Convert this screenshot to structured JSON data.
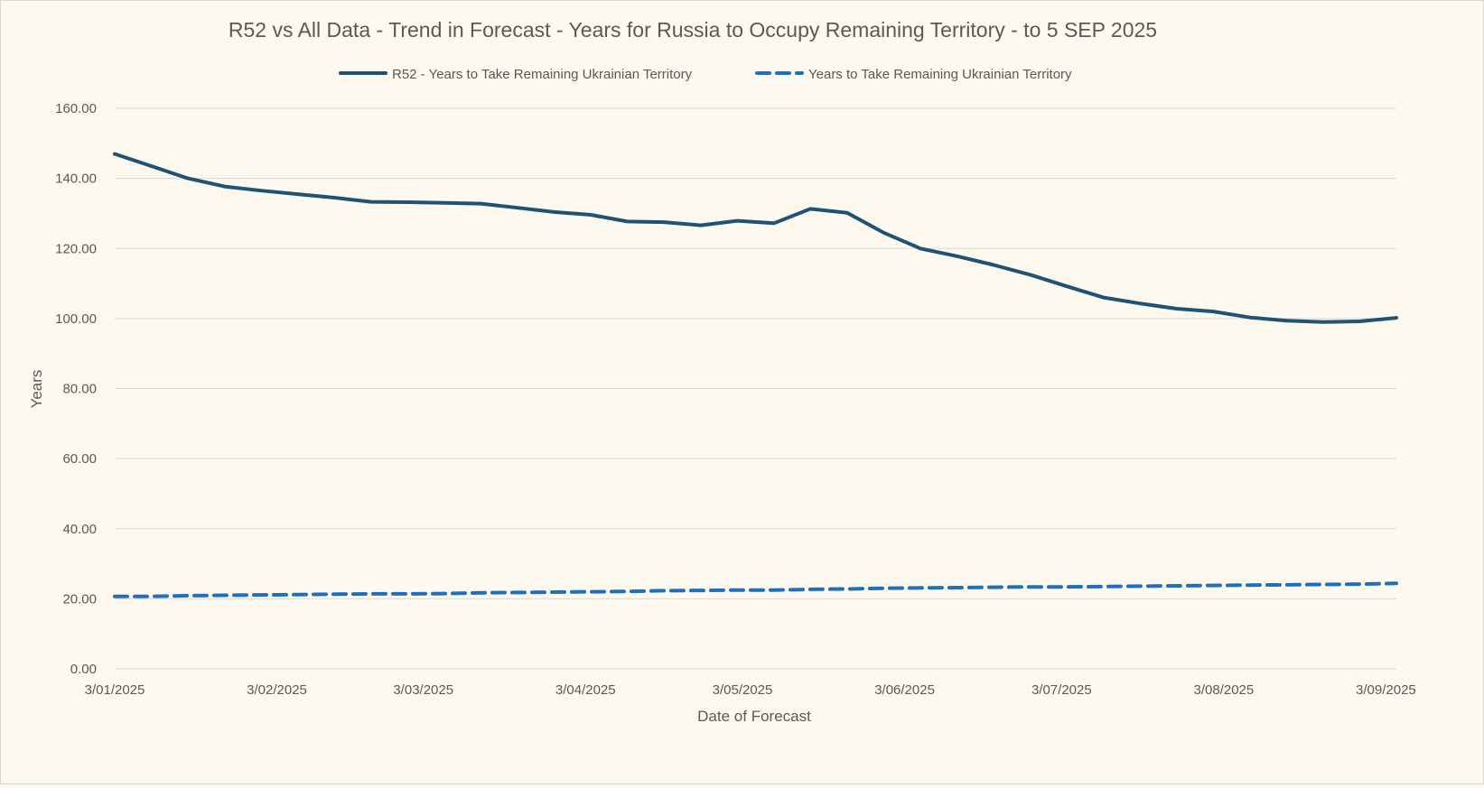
{
  "colors": {
    "series_r52": "#1f5273",
    "series_all": "#1f6fbf",
    "grid": "#d9d9d9",
    "text": "#595959",
    "background": "#fdf9ee"
  },
  "chart_data": {
    "type": "line",
    "title": "R52 vs All Data  - Trend in Forecast - Years for Russia to Occupy Remaining Territory - to 5 SEP 2025",
    "xlabel": "Date of Forecast",
    "ylabel": "Years",
    "ylim": [
      0,
      160
    ],
    "yticks": [
      "0.00",
      "20.00",
      "40.00",
      "60.00",
      "80.00",
      "100.00",
      "120.00",
      "140.00",
      "160.00"
    ],
    "yticks_values": [
      0,
      20,
      40,
      60,
      80,
      100,
      120,
      140,
      160
    ],
    "xlim_days": [
      0,
      245
    ],
    "xticks": [
      "3/01/2025",
      "3/02/2025",
      "3/03/2025",
      "3/04/2025",
      "3/05/2025",
      "3/06/2025",
      "3/07/2025",
      "3/08/2025",
      "3/09/2025"
    ],
    "xticks_days": [
      0,
      31,
      59,
      90,
      120,
      151,
      181,
      212,
      243
    ],
    "legend": "top",
    "grid": true,
    "series": [
      {
        "name": "R52 - Years to Take Remaining Ukrainian Territory",
        "style": "solid",
        "x_days": [
          0,
          7,
          14,
          21,
          28,
          35,
          42,
          49,
          56,
          63,
          70,
          77,
          84,
          91,
          98,
          105,
          112,
          119,
          126,
          133,
          140,
          147,
          154,
          161,
          168,
          175,
          182,
          189,
          196,
          203,
          210,
          217,
          224,
          231,
          238,
          245
        ],
        "values": [
          147.0,
          143.5,
          140.0,
          137.7,
          136.5,
          135.5,
          134.5,
          133.3,
          133.2,
          133.0,
          132.8,
          131.6,
          130.4,
          129.6,
          127.7,
          127.5,
          126.6,
          127.9,
          127.2,
          131.3,
          130.2,
          124.5,
          120.0,
          117.8,
          115.3,
          112.5,
          109.2,
          106.0,
          104.3,
          102.8,
          102.0,
          100.3,
          99.4,
          99.0,
          99.2,
          100.2
        ]
      },
      {
        "name": "Years to Take Remaining Ukrainian Territory",
        "style": "dashed",
        "x_days": [
          0,
          7,
          14,
          21,
          28,
          35,
          42,
          49,
          56,
          63,
          70,
          77,
          84,
          91,
          98,
          105,
          112,
          119,
          126,
          133,
          140,
          147,
          154,
          161,
          168,
          175,
          182,
          189,
          196,
          203,
          210,
          217,
          224,
          231,
          238,
          245
        ],
        "values": [
          20.7,
          20.7,
          20.9,
          21.0,
          21.1,
          21.2,
          21.3,
          21.4,
          21.4,
          21.5,
          21.7,
          21.8,
          21.9,
          22.0,
          22.1,
          22.3,
          22.4,
          22.5,
          22.5,
          22.7,
          22.8,
          23.0,
          23.1,
          23.2,
          23.3,
          23.4,
          23.4,
          23.5,
          23.6,
          23.7,
          23.8,
          23.9,
          24.0,
          24.1,
          24.2,
          24.4
        ]
      }
    ]
  }
}
